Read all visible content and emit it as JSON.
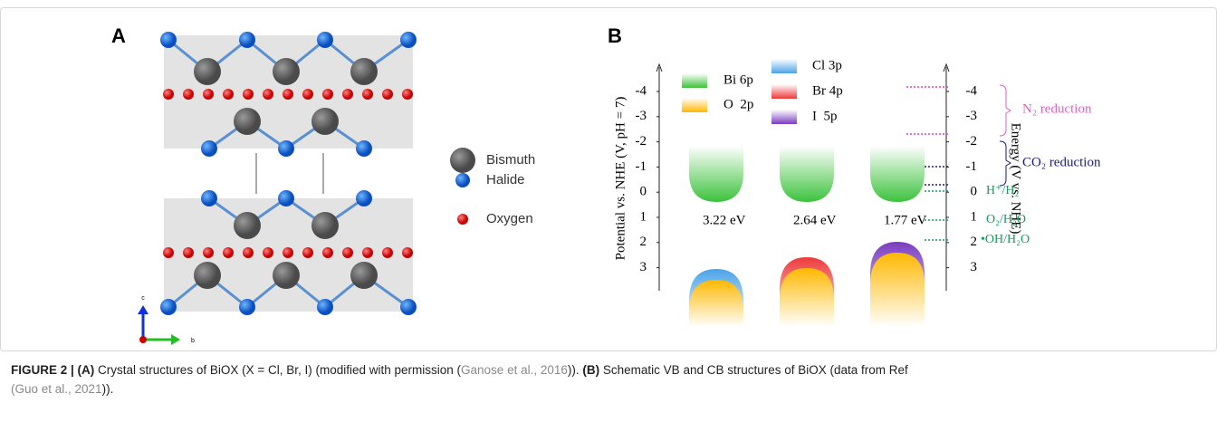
{
  "panel_a": {
    "label": "A",
    "legend": [
      "Bismuth",
      "Halide",
      "Oxygen"
    ],
    "axis_labels": [
      "c",
      "b"
    ]
  },
  "panel_b": {
    "label": "B",
    "left_axis_label": "Potential vs. NHE (V, pH = 7)",
    "left_ticks": [
      "-4",
      "-3",
      "-2",
      "-1",
      "0",
      "1",
      "2",
      "3"
    ],
    "right_axis_label": "Energy (V vs. NHE)",
    "right_ticks": [
      "-4",
      "-3",
      "-2",
      "-1",
      "0",
      "1",
      "2",
      "3"
    ],
    "legend": [
      "Bi 6p",
      "O  2p",
      "Cl 3p",
      "Br 4p",
      "I  5p"
    ],
    "band_gaps": [
      "3.22 eV",
      "2.64 eV",
      "1.77 eV"
    ],
    "annotations": [
      "N₂ reduction",
      "CO₂ reduction",
      "H⁺/H₂",
      "O₂/H₂O",
      "•OH/H₂O"
    ]
  },
  "caption": {
    "parts": [
      "FIGURE 2 | (A)",
      "Crystal structures of BiOX (X = Cl, Br, I) (modified with permission (",
      "Ganose et al., 2016",
      "))",
      "(B)",
      "Schematic VB and CB structures of BiOX (data from Ref",
      "(Guo et al., 2021",
      "))."
    ]
  }
}
